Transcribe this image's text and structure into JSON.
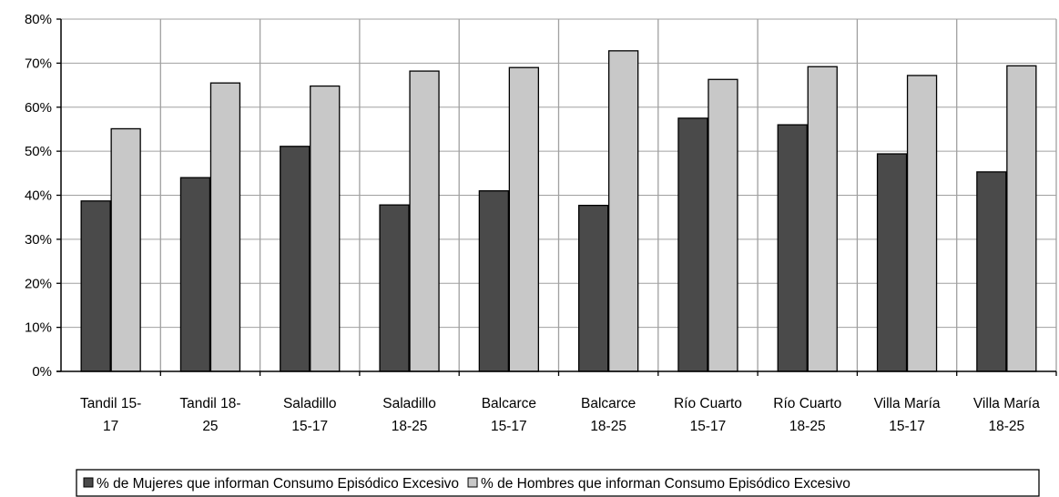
{
  "chart_data": {
    "type": "bar",
    "title": "",
    "xlabel": "",
    "ylabel": "",
    "ylim": [
      0,
      0.8
    ],
    "yticks": [
      "0%",
      "10%",
      "20%",
      "30%",
      "40%",
      "50%",
      "60%",
      "70%",
      "80%"
    ],
    "categories": [
      [
        "Tandil 15-",
        "17"
      ],
      [
        "Tandil  18-",
        "25"
      ],
      [
        "Saladillo",
        "15-17"
      ],
      [
        "Saladillo",
        "18-25"
      ],
      [
        "Balcarce",
        "15-17"
      ],
      [
        "Balcarce",
        "18-25"
      ],
      [
        "Río Cuarto",
        "15-17"
      ],
      [
        "Río Cuarto",
        "18-25"
      ],
      [
        "Villa María",
        "15-17"
      ],
      [
        "Villa María",
        "18-25"
      ]
    ],
    "series": [
      {
        "name": "% de Mujeres que informan Consumo Episódico Excesivo",
        "color": "#4a4a4a",
        "values": [
          0.387,
          0.44,
          0.511,
          0.378,
          0.41,
          0.377,
          0.575,
          0.56,
          0.494,
          0.453
        ]
      },
      {
        "name": "% de Hombres  que informan Consumo Episódico Excesivo",
        "color": "#c8c8c8",
        "values": [
          0.551,
          0.655,
          0.648,
          0.682,
          0.69,
          0.728,
          0.663,
          0.692,
          0.672,
          0.694
        ]
      }
    ],
    "grid": true,
    "legend_position": "bottom"
  }
}
